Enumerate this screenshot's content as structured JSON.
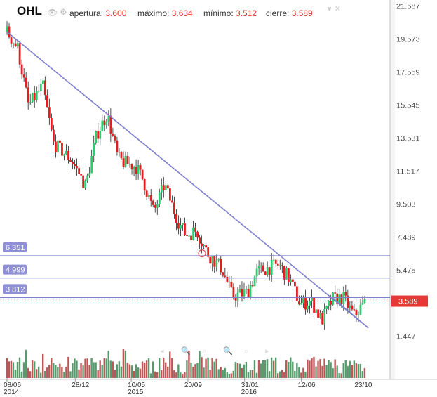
{
  "header": {
    "symbol": "OHL",
    "open_label": "apertura:",
    "open_value": "3.600",
    "high_label": "máximo:",
    "high_value": "3.634",
    "low_label": "mínimo:",
    "low_value": "3.512",
    "close_label": "cierre:",
    "close_value": "3.589",
    "icons": [
      "eye-icon",
      "gear-icon",
      "heart-icon",
      "close-icon"
    ]
  },
  "colors": {
    "up": "#2ecc71",
    "down": "#e41e1e",
    "line": "#8080cc",
    "last_price": "#e53935"
  },
  "chart_data": {
    "type": "candlestick",
    "y_ticks": [
      "21.587",
      "19.573",
      "17.559",
      "15.545",
      "13.531",
      "11.517",
      "9.503",
      "7.489",
      "5.475",
      "1.447"
    ],
    "ylim": [
      0.4,
      21.6
    ],
    "x_ticks": [
      {
        "label": "08/06",
        "sub": "2014",
        "t": 0.0
      },
      {
        "label": "28/12",
        "sub": "",
        "t": 0.1908
      },
      {
        "label": "10/05",
        "sub": "2015",
        "t": 0.3472
      },
      {
        "label": "20/09",
        "sub": "",
        "t": 0.5057
      },
      {
        "label": "31/01",
        "sub": "2016",
        "t": 0.6642
      },
      {
        "label": "12/06",
        "sub": "",
        "t": 0.8227
      },
      {
        "label": "23/10",
        "sub": "",
        "t": 0.9811
      }
    ],
    "horizontal_levels": [
      {
        "label": "6.351",
        "value": 6.351
      },
      {
        "label": "4.999",
        "value": 4.999
      },
      {
        "label": "3.812",
        "value": 3.812
      }
    ],
    "last_price": "3.589",
    "trendlines": [
      {
        "from": [
          0.0,
          20.0
        ],
        "to": [
          1.01,
          1.95
        ]
      },
      {
        "from": [
          1.01,
          1.95
        ],
        "to": [
          0.91,
          3.8
        ]
      }
    ],
    "marker": {
      "t": 0.545,
      "value": 6.5
    },
    "key_points": [
      [
        0.0,
        20.0
      ],
      [
        0.03,
        19.0
      ],
      [
        0.06,
        15.5
      ],
      [
        0.1,
        16.7
      ],
      [
        0.13,
        13.2
      ],
      [
        0.18,
        12.2
      ],
      [
        0.22,
        10.6
      ],
      [
        0.25,
        13.7
      ],
      [
        0.28,
        15.0
      ],
      [
        0.31,
        12.3
      ],
      [
        0.33,
        12.0
      ],
      [
        0.36,
        11.8
      ],
      [
        0.38,
        11.0
      ],
      [
        0.41,
        9.0
      ],
      [
        0.44,
        10.7
      ],
      [
        0.46,
        9.5
      ],
      [
        0.48,
        8.4
      ],
      [
        0.5,
        7.6
      ],
      [
        0.53,
        7.9
      ],
      [
        0.56,
        6.5
      ],
      [
        0.6,
        5.6
      ],
      [
        0.63,
        3.9
      ],
      [
        0.67,
        4.1
      ],
      [
        0.7,
        5.4
      ],
      [
        0.73,
        5.6
      ],
      [
        0.76,
        5.8
      ],
      [
        0.79,
        4.9
      ],
      [
        0.82,
        3.4
      ],
      [
        0.85,
        3.6
      ],
      [
        0.88,
        2.4
      ],
      [
        0.91,
        3.7
      ],
      [
        0.94,
        3.8
      ],
      [
        0.97,
        2.7
      ],
      [
        1.0,
        3.5
      ]
    ],
    "volume_level": 0.35
  }
}
